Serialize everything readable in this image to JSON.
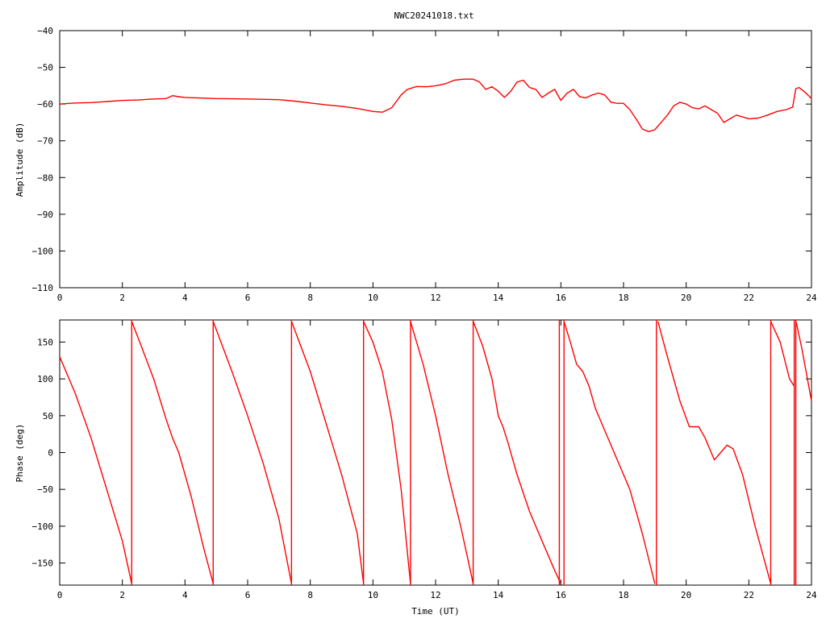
{
  "title": "NWC20241018.txt",
  "colors": {
    "trace": "#ff0000",
    "axes": "#000000",
    "background": "#ffffff"
  },
  "chart_data": [
    {
      "type": "line",
      "ylabel": "Amplitude (dB)",
      "xlabel": "",
      "xlim": [
        0,
        24
      ],
      "ylim": [
        -110,
        -40
      ],
      "xticks": [
        "0",
        "2",
        "4",
        "6",
        "8",
        "10",
        "12",
        "14",
        "16",
        "18",
        "20",
        "22",
        "24"
      ],
      "yticks": [
        "-40",
        "-50",
        "-60",
        "-70",
        "-80",
        "-90",
        "-100",
        "-110"
      ],
      "grid": false,
      "x": [
        0,
        0.5,
        1,
        1.5,
        2,
        2.5,
        3,
        3.4,
        3.6,
        3.8,
        4,
        5,
        6,
        7,
        7.5,
        8,
        8.5,
        9,
        9.5,
        10,
        10.3,
        10.6,
        10.9,
        11.1,
        11.4,
        11.7,
        12,
        12.3,
        12.6,
        12.9,
        13.2,
        13.4,
        13.6,
        13.8,
        14.0,
        14.2,
        14.4,
        14.6,
        14.8,
        15.0,
        15.2,
        15.4,
        15.6,
        15.8,
        16.0,
        16.2,
        16.4,
        16.6,
        16.8,
        17.0,
        17.2,
        17.4,
        17.6,
        17.8,
        18.0,
        18.2,
        18.4,
        18.6,
        18.8,
        19.0,
        19.2,
        19.4,
        19.6,
        19.8,
        20.0,
        20.2,
        20.4,
        20.6,
        20.8,
        21.0,
        21.2,
        21.4,
        21.6,
        21.8,
        22.0,
        22.3,
        22.6,
        22.9,
        23.2,
        23.4,
        23.5,
        23.6,
        23.8,
        24.0
      ],
      "y": [
        -60,
        -59.7,
        -59.6,
        -59.3,
        -59,
        -58.9,
        -58.6,
        -58.5,
        -57.7,
        -58,
        -58.2,
        -58.5,
        -58.6,
        -58.8,
        -59.2,
        -59.7,
        -60.2,
        -60.6,
        -61.2,
        -62,
        -62.2,
        -61,
        -57.5,
        -56,
        -55.2,
        -55.3,
        -55,
        -54.5,
        -53.5,
        -53.2,
        -53.2,
        -54,
        -56,
        -55.3,
        -56.5,
        -58.2,
        -56.5,
        -54,
        -53.5,
        -55.5,
        -56,
        -58.2,
        -57,
        -56,
        -59,
        -57,
        -56,
        -58,
        -58.3,
        -57.5,
        -57,
        -57.5,
        -59.5,
        -59.8,
        -59.8,
        -61.5,
        -64,
        -66.8,
        -67.5,
        -67,
        -65,
        -63,
        -60.5,
        -59.5,
        -60,
        -61,
        -61.3,
        -60.5,
        -61.5,
        -62.5,
        -65,
        -64,
        -63,
        -63.5,
        -64,
        -63.8,
        -63,
        -62,
        -61.5,
        -60.8,
        -55.8,
        -55.5,
        -56.8,
        -58.5
      ]
    },
    {
      "type": "line",
      "ylabel": "Phase (deg)",
      "xlabel": "Time (UT)",
      "xlim": [
        0,
        24
      ],
      "ylim": [
        -180,
        180
      ],
      "xticks": [
        "0",
        "2",
        "4",
        "6",
        "8",
        "10",
        "12",
        "14",
        "16",
        "18",
        "20",
        "22",
        "24"
      ],
      "yticks": [
        "150",
        "100",
        "50",
        "0",
        "-50",
        "-100",
        "-150"
      ],
      "grid": false,
      "segments": [
        {
          "x": [
            0,
            0.3,
            0.5,
            1.0,
            1.5,
            2.0,
            2.3
          ],
          "y": [
            130,
            100,
            80,
            20,
            -50,
            -120,
            -178
          ]
        },
        {
          "x": [
            2.3,
            2.6,
            3.0,
            3.4,
            3.6,
            3.8,
            4.2,
            4.6,
            4.9
          ],
          "y": [
            178,
            145,
            100,
            45,
            20,
            0,
            -60,
            -130,
            -178
          ]
        },
        {
          "x": [
            4.9,
            5.5,
            6.0,
            6.5,
            7.0,
            7.4
          ],
          "y": [
            178,
            110,
            50,
            -15,
            -90,
            -178
          ]
        },
        {
          "x": [
            7.4,
            8.0,
            8.5,
            9.0,
            9.5,
            9.7
          ],
          "y": [
            178,
            110,
            40,
            -30,
            -110,
            -178
          ]
        },
        {
          "x": [
            9.7,
            10.0,
            10.3,
            10.6,
            10.9,
            11.2
          ],
          "y": [
            178,
            150,
            110,
            45,
            -50,
            -178
          ]
        },
        {
          "x": [
            11.2,
            11.6,
            12.0,
            12.4,
            12.8,
            13.2
          ],
          "y": [
            178,
            120,
            50,
            -30,
            -100,
            -178
          ]
        },
        {
          "x": [
            13.2,
            13.5,
            13.8,
            14.0,
            14.15,
            14.3,
            14.6,
            15.0,
            15.4,
            15.8,
            16.0
          ],
          "y": [
            178,
            145,
            100,
            50,
            35,
            15,
            -30,
            -80,
            -120,
            -160,
            -178
          ]
        },
        {
          "x": [
            16.1,
            16.3,
            16.5,
            16.7,
            16.9,
            17.1,
            17.4,
            17.8,
            18.2,
            18.6,
            19.0
          ],
          "y": [
            178,
            150,
            120,
            110,
            90,
            60,
            30,
            -10,
            -50,
            -110,
            -178
          ]
        },
        {
          "x": [
            19.1,
            19.4,
            19.8,
            20.1,
            20.4,
            20.6,
            20.9,
            21.1,
            21.3,
            21.5,
            21.8,
            22.2,
            22.7
          ],
          "y": [
            178,
            130,
            70,
            35,
            35,
            20,
            -10,
            0,
            10,
            5,
            -30,
            -100,
            -178
          ]
        },
        {
          "x": [
            22.7,
            23.0,
            23.3,
            23.45
          ],
          "y": [
            178,
            150,
            100,
            90
          ]
        },
        {
          "x": [
            23.5,
            23.55,
            23.7,
            24.0
          ],
          "y": [
            178,
            170,
            140,
            70
          ]
        }
      ],
      "wraps": [
        2.3,
        4.9,
        7.4,
        9.7,
        11.2,
        13.2,
        15.95,
        16.1,
        19.05,
        22.7,
        23.45,
        23.5
      ]
    }
  ]
}
